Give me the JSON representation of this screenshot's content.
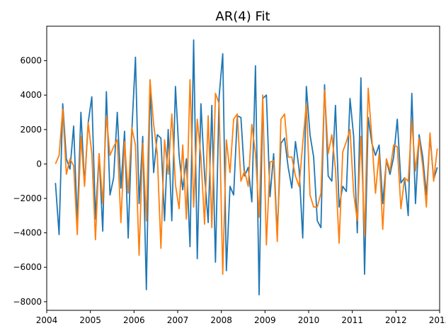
{
  "chart_data": {
    "type": "line",
    "title": "AR(4) Fit",
    "xlabel": "",
    "ylabel": "",
    "grid": false,
    "xlim": [
      2004.0,
      2013.0
    ],
    "ylim": [
      -8500,
      8000
    ],
    "x_ticks": [
      2004,
      2005,
      2006,
      2007,
      2008,
      2009,
      2010,
      2011,
      2012,
      2013
    ],
    "x_tick_labels": [
      "2004",
      "2005",
      "2006",
      "2007",
      "2008",
      "2009",
      "2010",
      "2011",
      "2012",
      "2013"
    ],
    "y_ticks": [
      -8000,
      -6000,
      -4000,
      -2000,
      0,
      2000,
      4000,
      6000
    ],
    "y_tick_labels": [
      "−8000",
      "−6000",
      "−4000",
      "−2000",
      "0",
      "2000",
      "4000",
      "6000"
    ],
    "x_start": 2004.2,
    "x_step": 0.0833,
    "series": [
      {
        "color": "#1f77b4",
        "values": [
          -1100,
          -4100,
          3500,
          300,
          -300,
          2200,
          -3400,
          3000,
          -1200,
          2400,
          3900,
          -3200,
          600,
          -3900,
          4200,
          -1800,
          -800,
          3000,
          -1400,
          1900,
          -4300,
          1900,
          6200,
          -2300,
          1600,
          -7300,
          4500,
          -500,
          1700,
          1500,
          -3300,
          2000,
          -3300,
          4500,
          500,
          -1500,
          300,
          -4800,
          7200,
          -5500,
          3500,
          -600,
          -3400,
          3400,
          -5700,
          3900,
          6400,
          -6200,
          -1300,
          -1800,
          2800,
          2700,
          -700,
          -200,
          -2200,
          5700,
          -7600,
          3800,
          4000,
          -1900,
          600,
          -4100,
          1200,
          1500,
          -200,
          -1400,
          1300,
          -300,
          -4300,
          4500,
          1700,
          400,
          -3300,
          -3700,
          4600,
          -700,
          -1000,
          3400,
          -2500,
          -1300,
          -1600,
          3800,
          1600,
          -4000,
          5000,
          -6400,
          2700,
          1200,
          500,
          1100,
          -2300,
          200,
          -600,
          400,
          2600,
          -1100,
          -800,
          -3000,
          4100,
          -2300,
          1700,
          400,
          -1800,
          1600,
          -900,
          -200
        ]
      },
      {
        "color": "#ff7f0e",
        "values": [
          0,
          500,
          3200,
          -600,
          300,
          -100,
          -4100,
          1600,
          -1300,
          2400,
          600,
          -4400,
          600,
          -2300,
          2800,
          500,
          1000,
          1400,
          -3400,
          1300,
          -1700,
          2100,
          1100,
          -5300,
          1200,
          -3300,
          4900,
          2300,
          600,
          -4900,
          1400,
          -600,
          2900,
          -1200,
          -2600,
          1100,
          -3200,
          4900,
          -2500,
          2600,
          400,
          -3500,
          2800,
          -3700,
          4100,
          3500,
          -6400,
          1400,
          -500,
          2600,
          2900,
          -1000,
          -400,
          -1300,
          2300,
          600,
          -3100,
          4000,
          -4700,
          100,
          200,
          -4500,
          2600,
          2900,
          400,
          400,
          -700,
          -1300,
          1200,
          3500,
          -1800,
          -2500,
          -2500,
          -1700,
          4300,
          600,
          1700,
          -300,
          -4600,
          700,
          1300,
          2000,
          -1700,
          -3300,
          1600,
          -4200,
          4400,
          1500,
          -1700,
          600,
          -3800,
          300,
          -400,
          1100,
          1000,
          -2600,
          -800,
          -1000,
          2500,
          -400,
          1500,
          -100,
          -2500,
          1800,
          -1000,
          900
        ]
      }
    ]
  }
}
